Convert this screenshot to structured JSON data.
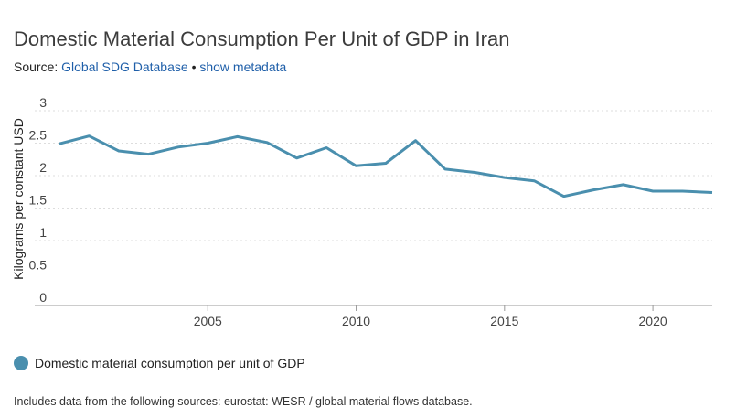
{
  "header": {
    "title": "Domestic Material Consumption Per Unit of GDP in Iran",
    "source_prefix": "Source:",
    "source_link": "Global SDG Database",
    "separator": "•",
    "metadata_link": "show metadata"
  },
  "footnote": "Includes data from the following sources: eurostat: WESR / global material flows database.",
  "colors": {
    "series": "#4a8fae",
    "grid": "#dddddd",
    "axis": "#999999",
    "link": "#1f5fa9"
  },
  "chart_data": {
    "type": "line",
    "title": "Domestic Material Consumption Per Unit of GDP in Iran",
    "xlabel": "",
    "ylabel": "Kilograms per constant USD",
    "xlim": [
      2000,
      2022
    ],
    "ylim": [
      0,
      3
    ],
    "x_ticks": [
      2005,
      2010,
      2015,
      2020
    ],
    "y_ticks": [
      0,
      0.5,
      1,
      1.5,
      2,
      2.5,
      3
    ],
    "grid": true,
    "legend_position": "bottom-left",
    "series": [
      {
        "name": "Domestic material consumption per unit of GDP",
        "x": [
          2000,
          2001,
          2002,
          2003,
          2004,
          2005,
          2006,
          2007,
          2008,
          2009,
          2010,
          2011,
          2012,
          2013,
          2014,
          2015,
          2016,
          2017,
          2018,
          2019,
          2020,
          2021,
          2022
        ],
        "values": [
          2.49,
          2.61,
          2.38,
          2.33,
          2.44,
          2.5,
          2.6,
          2.51,
          2.27,
          2.43,
          2.15,
          2.19,
          2.54,
          2.1,
          2.05,
          1.97,
          1.92,
          1.68,
          1.78,
          1.86,
          1.76,
          1.76,
          1.74
        ]
      }
    ]
  }
}
